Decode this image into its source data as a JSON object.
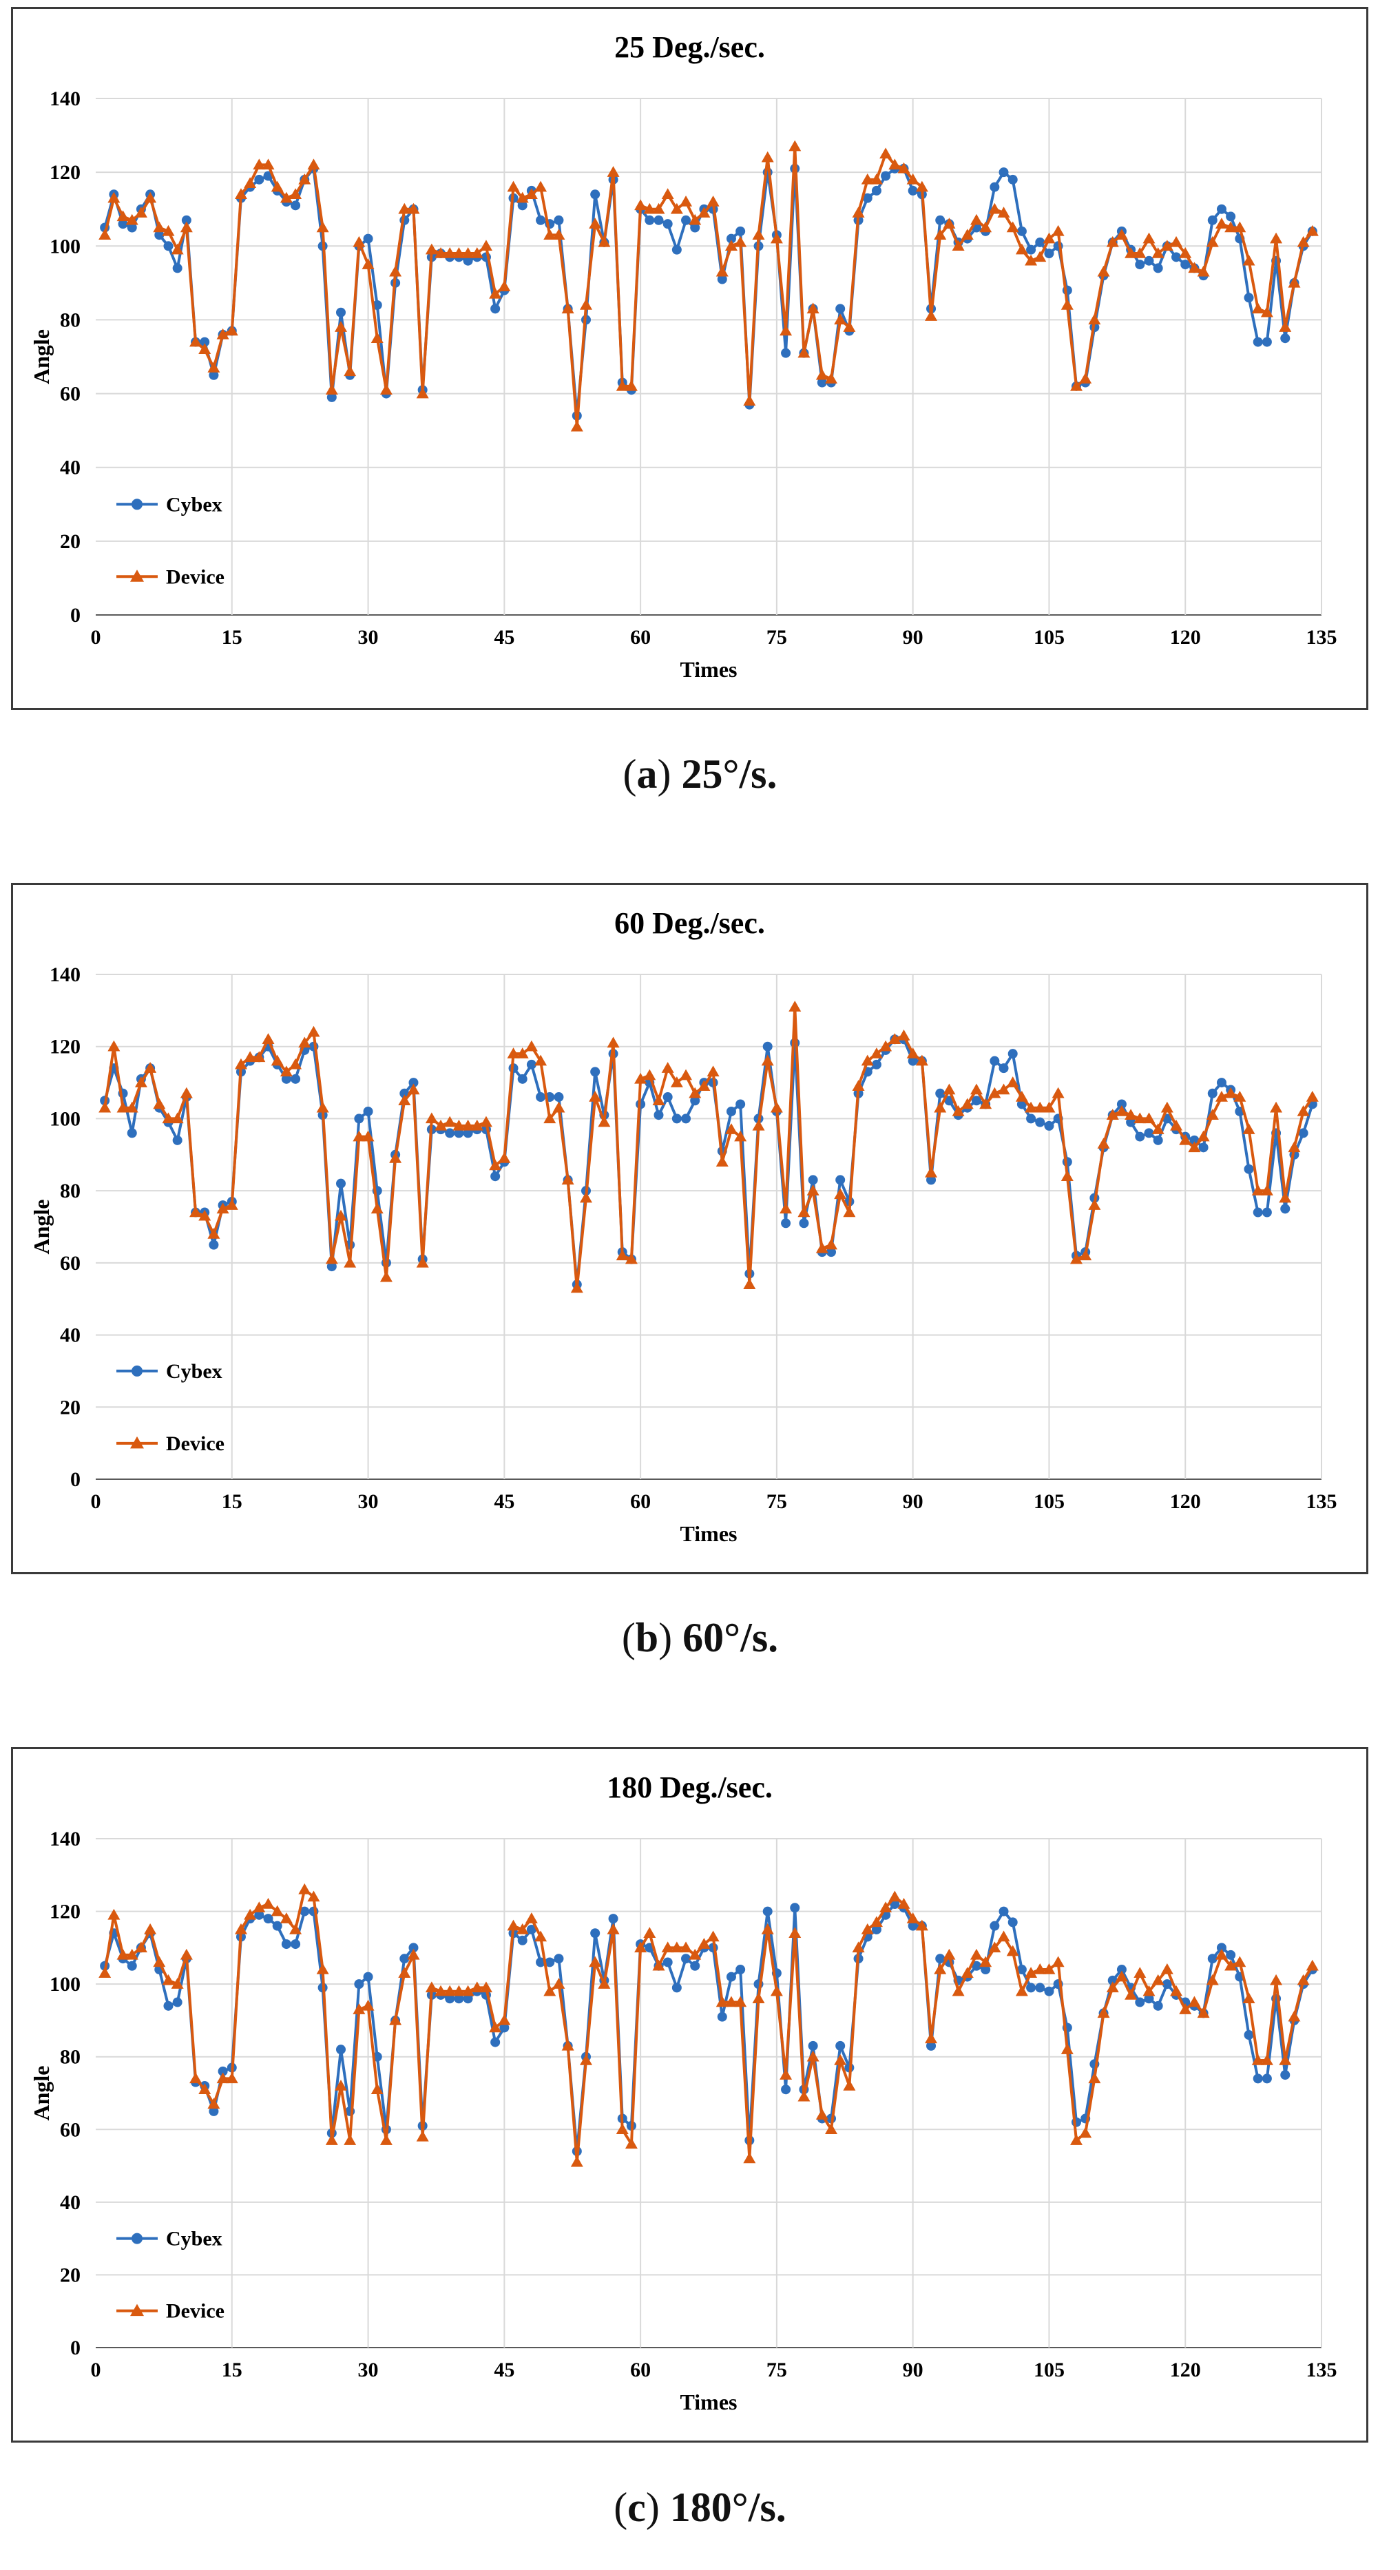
{
  "figure": {
    "captions": [
      {
        "letter": "a",
        "text": "25°/s."
      },
      {
        "letter": "b",
        "text": "60°/s."
      },
      {
        "letter": "c",
        "text": "180°/s."
      }
    ]
  },
  "colors": {
    "cybex": "#2e6fbd",
    "device": "#d9590f",
    "grid": "#d9d9d9",
    "axis": "#595959",
    "text": "#000000"
  },
  "chart_data": [
    {
      "type": "line",
      "title": "25 Deg./sec.",
      "xlabel": "Times",
      "ylabel": "Angle",
      "xlim": [
        0,
        135
      ],
      "ylim": [
        0,
        140
      ],
      "xticks": [
        0,
        15,
        30,
        45,
        60,
        75,
        90,
        105,
        120,
        135
      ],
      "yticks": [
        0,
        20,
        40,
        60,
        80,
        100,
        120,
        140
      ],
      "grid": true,
      "legend_position": "bottom-left",
      "series": [
        {
          "name": "Cybex",
          "marker": "circle",
          "values": [
            105,
            114,
            106,
            105,
            110,
            114,
            103,
            100,
            94,
            107,
            74,
            74,
            65,
            76,
            77,
            113,
            116,
            118,
            119,
            115,
            112,
            111,
            118,
            121,
            100,
            59,
            82,
            65,
            100,
            102,
            84,
            60,
            90,
            107,
            110,
            61,
            97,
            98,
            97,
            97,
            96,
            97,
            97,
            83,
            88,
            113,
            111,
            115,
            107,
            106,
            107,
            83,
            54,
            80,
            114,
            101,
            118,
            63,
            61,
            110,
            107,
            107,
            106,
            99,
            107,
            105,
            110,
            110,
            91,
            102,
            104,
            57,
            100,
            120,
            103,
            71,
            121,
            71,
            83,
            63,
            63,
            83,
            77,
            107,
            113,
            115,
            119,
            121,
            121,
            115,
            114,
            83,
            107,
            106,
            101,
            102,
            105,
            104,
            116,
            120,
            118,
            104,
            99,
            101,
            98,
            100,
            88,
            62,
            63,
            78,
            92,
            101,
            104,
            99,
            95,
            96,
            94,
            100,
            97,
            95,
            94,
            92,
            107,
            110,
            108,
            102,
            86,
            74,
            74,
            96,
            75,
            90,
            100,
            104
          ],
          "color_key": "cybex"
        },
        {
          "name": "Device",
          "marker": "triangle",
          "values": [
            103,
            113,
            108,
            107,
            109,
            113,
            105,
            104,
            99,
            105,
            74,
            72,
            67,
            76,
            77,
            114,
            117,
            122,
            122,
            116,
            113,
            114,
            118,
            122,
            105,
            61,
            78,
            66,
            101,
            95,
            75,
            61,
            93,
            110,
            110,
            60,
            99,
            98,
            98,
            98,
            98,
            98,
            100,
            87,
            89,
            116,
            113,
            114,
            116,
            103,
            103,
            83,
            51,
            84,
            106,
            101,
            120,
            62,
            62,
            111,
            110,
            110,
            114,
            110,
            112,
            107,
            109,
            112,
            93,
            100,
            101,
            58,
            103,
            124,
            102,
            77,
            127,
            71,
            83,
            65,
            64,
            80,
            78,
            109,
            118,
            118,
            125,
            122,
            121,
            118,
            116,
            81,
            103,
            106,
            100,
            103,
            107,
            105,
            110,
            109,
            105,
            99,
            96,
            97,
            102,
            104,
            84,
            62,
            64,
            80,
            93,
            101,
            103,
            98,
            98,
            102,
            98,
            100,
            101,
            98,
            94,
            93,
            101,
            106,
            105,
            105,
            96,
            83,
            82,
            102,
            78,
            90,
            101,
            104
          ],
          "color_key": "device"
        }
      ]
    },
    {
      "type": "line",
      "title": "60 Deg./sec.",
      "xlabel": "Times",
      "ylabel": "Angle",
      "xlim": [
        0,
        135
      ],
      "ylim": [
        0,
        140
      ],
      "xticks": [
        0,
        15,
        30,
        45,
        60,
        75,
        90,
        105,
        120,
        135
      ],
      "yticks": [
        0,
        20,
        40,
        60,
        80,
        100,
        120,
        140
      ],
      "grid": true,
      "legend_position": "bottom-left",
      "series": [
        {
          "name": "Cybex",
          "marker": "circle",
          "values": [
            105,
            114,
            107,
            96,
            111,
            114,
            103,
            99,
            94,
            106,
            74,
            74,
            65,
            76,
            77,
            113,
            116,
            117,
            120,
            115,
            111,
            111,
            119,
            120,
            101,
            59,
            82,
            65,
            100,
            102,
            80,
            60,
            90,
            107,
            110,
            61,
            97,
            97,
            96,
            96,
            96,
            97,
            97,
            84,
            88,
            114,
            111,
            115,
            106,
            106,
            106,
            83,
            54,
            80,
            113,
            101,
            118,
            63,
            61,
            104,
            110,
            101,
            106,
            100,
            100,
            105,
            110,
            110,
            91,
            102,
            104,
            57,
            100,
            120,
            102,
            71,
            121,
            71,
            83,
            63,
            63,
            83,
            77,
            107,
            113,
            115,
            119,
            122,
            122,
            116,
            116,
            83,
            107,
            105,
            101,
            103,
            105,
            104,
            116,
            114,
            118,
            104,
            100,
            99,
            98,
            100,
            88,
            62,
            63,
            78,
            92,
            101,
            104,
            99,
            95,
            96,
            94,
            100,
            97,
            95,
            94,
            92,
            107,
            110,
            108,
            102,
            86,
            74,
            74,
            96,
            75,
            90,
            96,
            104
          ],
          "color_key": "cybex"
        },
        {
          "name": "Device",
          "marker": "triangle",
          "values": [
            103,
            120,
            103,
            103,
            110,
            114,
            104,
            100,
            100,
            107,
            74,
            73,
            68,
            75,
            76,
            115,
            117,
            117,
            122,
            116,
            113,
            115,
            121,
            124,
            103,
            61,
            73,
            60,
            95,
            95,
            75,
            56,
            89,
            105,
            108,
            60,
            100,
            98,
            99,
            98,
            98,
            98,
            99,
            87,
            89,
            118,
            118,
            120,
            116,
            100,
            103,
            83,
            53,
            78,
            106,
            99,
            121,
            62,
            61,
            111,
            112,
            105,
            114,
            110,
            112,
            107,
            109,
            113,
            88,
            97,
            95,
            54,
            98,
            116,
            103,
            75,
            131,
            74,
            80,
            64,
            65,
            79,
            74,
            109,
            116,
            118,
            120,
            122,
            123,
            118,
            116,
            85,
            103,
            108,
            102,
            104,
            108,
            104,
            107,
            108,
            110,
            106,
            103,
            103,
            103,
            107,
            84,
            61,
            62,
            76,
            93,
            101,
            102,
            101,
            100,
            100,
            97,
            103,
            98,
            94,
            92,
            95,
            101,
            106,
            107,
            106,
            97,
            80,
            80,
            103,
            78,
            92,
            102,
            106
          ],
          "color_key": "device"
        }
      ]
    },
    {
      "type": "line",
      "title": "180 Deg./sec.",
      "xlabel": "Times",
      "ylabel": "Angle",
      "xlim": [
        0,
        135
      ],
      "ylim": [
        0,
        140
      ],
      "xticks": [
        0,
        15,
        30,
        45,
        60,
        75,
        90,
        105,
        120,
        135
      ],
      "yticks": [
        0,
        20,
        40,
        60,
        80,
        100,
        120,
        140
      ],
      "grid": true,
      "legend_position": "bottom-left",
      "series": [
        {
          "name": "Cybex",
          "marker": "circle",
          "values": [
            105,
            114,
            107,
            105,
            110,
            114,
            104,
            94,
            95,
            107,
            73,
            72,
            65,
            76,
            77,
            113,
            118,
            119,
            118,
            116,
            111,
            111,
            120,
            120,
            99,
            59,
            82,
            65,
            100,
            102,
            80,
            60,
            90,
            107,
            110,
            61,
            97,
            97,
            96,
            96,
            96,
            98,
            97,
            84,
            88,
            114,
            112,
            115,
            106,
            106,
            107,
            83,
            54,
            80,
            114,
            101,
            118,
            63,
            61,
            111,
            110,
            105,
            106,
            99,
            107,
            105,
            110,
            110,
            91,
            102,
            104,
            57,
            100,
            120,
            103,
            71,
            121,
            71,
            83,
            63,
            63,
            83,
            77,
            107,
            113,
            115,
            119,
            122,
            121,
            116,
            116,
            83,
            107,
            106,
            101,
            102,
            105,
            104,
            116,
            120,
            117,
            104,
            99,
            99,
            98,
            100,
            88,
            62,
            63,
            78,
            92,
            101,
            104,
            99,
            95,
            96,
            94,
            100,
            97,
            95,
            94,
            92,
            107,
            110,
            108,
            102,
            86,
            74,
            74,
            96,
            75,
            90,
            100,
            104
          ],
          "color_key": "cybex"
        },
        {
          "name": "Device",
          "marker": "triangle",
          "values": [
            103,
            119,
            108,
            108,
            110,
            115,
            106,
            101,
            100,
            108,
            74,
            71,
            67,
            74,
            74,
            115,
            119,
            121,
            122,
            120,
            118,
            115,
            126,
            124,
            104,
            57,
            72,
            57,
            93,
            94,
            71,
            57,
            90,
            103,
            108,
            58,
            99,
            98,
            98,
            98,
            98,
            99,
            99,
            88,
            90,
            116,
            115,
            118,
            113,
            98,
            100,
            83,
            51,
            79,
            106,
            100,
            115,
            60,
            56,
            110,
            114,
            105,
            110,
            110,
            110,
            108,
            111,
            113,
            95,
            95,
            95,
            52,
            96,
            115,
            98,
            75,
            114,
            69,
            80,
            64,
            60,
            79,
            72,
            110,
            115,
            117,
            121,
            124,
            122,
            118,
            116,
            85,
            104,
            108,
            98,
            103,
            108,
            106,
            110,
            113,
            109,
            98,
            103,
            104,
            104,
            106,
            82,
            57,
            59,
            74,
            92,
            99,
            102,
            97,
            103,
            98,
            101,
            104,
            98,
            93,
            95,
            92,
            101,
            108,
            105,
            106,
            96,
            79,
            79,
            101,
            79,
            91,
            101,
            105
          ],
          "color_key": "device"
        }
      ]
    }
  ]
}
